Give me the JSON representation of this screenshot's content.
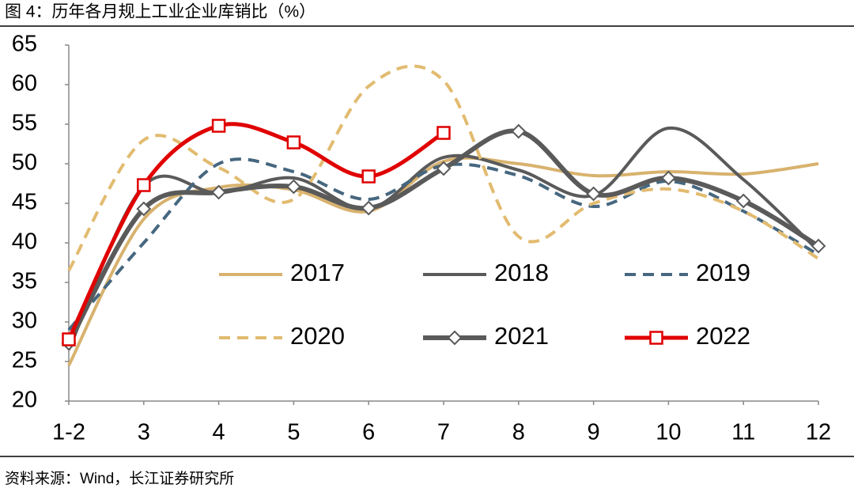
{
  "chart_data": {
    "type": "line",
    "title": "图 4：历年各月规上工业企业库销比（%）",
    "source": "资料来源：Wind，长江证券研究所",
    "categories": [
      "1-2",
      "3",
      "4",
      "5",
      "6",
      "7",
      "8",
      "9",
      "10",
      "11",
      "12"
    ],
    "ylim": [
      20,
      65
    ],
    "yticks": [
      20,
      25,
      30,
      35,
      40,
      45,
      50,
      55,
      60,
      65
    ],
    "grid": false,
    "smooth": true,
    "legend": "center",
    "series": [
      {
        "name": "2017",
        "color": "#d8b26e",
        "dash": false,
        "width": 4,
        "marker": "none",
        "values": [
          24.5,
          43,
          47,
          46.7,
          44,
          50.3,
          50,
          48.5,
          49,
          48.7,
          50
        ]
      },
      {
        "name": "2018",
        "color": "#5a5a5a",
        "dash": false,
        "width": 4,
        "marker": "none",
        "values": [
          26.5,
          47.2,
          46.3,
          48.2,
          44.3,
          50.8,
          49.2,
          46,
          54.5,
          48,
          39
        ]
      },
      {
        "name": "2019",
        "color": "#46677f",
        "dash": true,
        "width": 4,
        "marker": "none",
        "values": [
          29,
          40,
          50,
          49,
          45.5,
          49.8,
          48.5,
          44.6,
          47.8,
          44,
          38.5
        ]
      },
      {
        "name": "2020",
        "color": "#e2bb70",
        "dash": true,
        "width": 4,
        "marker": "none",
        "values": [
          36.5,
          53,
          49.5,
          45.5,
          59.8,
          60.5,
          40.8,
          45,
          46.8,
          44,
          38
        ]
      },
      {
        "name": "2021",
        "color": "#5a5a5a",
        "dash": false,
        "width": 6,
        "marker": "diamond",
        "values": [
          27.3,
          44.3,
          46.4,
          47.1,
          44.4,
          49.4,
          54.1,
          46.2,
          48.2,
          45.3,
          39.6
        ]
      },
      {
        "name": "2022",
        "color": "#e00000",
        "dash": false,
        "width": 5,
        "marker": "square",
        "values": [
          27.8,
          47.3,
          54.8,
          52.7,
          48.4,
          53.9,
          null,
          null,
          null,
          null,
          null
        ]
      }
    ]
  }
}
